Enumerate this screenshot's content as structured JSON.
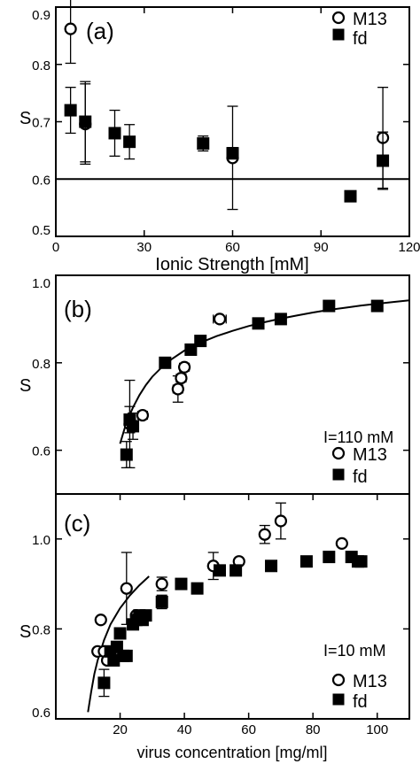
{
  "chart_data": [
    {
      "panel": "(a)",
      "type": "scatter",
      "xlabel": "Ionic Strength [mM]",
      "ylabel": "S",
      "xlim": [
        0,
        120
      ],
      "ylim": [
        0.5,
        0.9
      ],
      "xticks": [
        0,
        30,
        60,
        90,
        120
      ],
      "yticks": [
        0.5,
        0.6,
        0.7,
        0.8,
        0.9
      ],
      "xtick_labels": [
        "0",
        "30",
        "60",
        "90",
        "120"
      ],
      "ytick_labels": [
        "0.5",
        "0.6",
        "0.7",
        "0.8",
        "0.9"
      ],
      "legend_position": "top-right",
      "hline": 0.6,
      "series": [
        {
          "name": "M13",
          "marker": "open-circle",
          "points": [
            {
              "x": 5,
              "y": 0.862,
              "err": 0.06
            },
            {
              "x": 10,
              "y": 0.696,
              "err": 0.07
            },
            {
              "x": 60,
              "y": 0.637,
              "err": 0.09
            },
            {
              "x": 111,
              "y": 0.672,
              "err": 0.088
            }
          ]
        },
        {
          "name": "fd",
          "marker": "filled-square",
          "points": [
            {
              "x": 5,
              "y": 0.72,
              "err": 0.04
            },
            {
              "x": 10,
              "y": 0.7,
              "err": 0.07
            },
            {
              "x": 20,
              "y": 0.68,
              "err": 0.04
            },
            {
              "x": 25,
              "y": 0.665,
              "err": 0.03
            },
            {
              "x": 50,
              "y": 0.662,
              "err": 0.013
            },
            {
              "x": 60,
              "y": 0.645,
              "err": 0.01
            },
            {
              "x": 100,
              "y": 0.57,
              "err": 0.007
            },
            {
              "x": 111,
              "y": 0.632,
              "err": 0.05
            }
          ]
        }
      ]
    },
    {
      "panel": "(b)",
      "type": "scatter",
      "xlabel": "",
      "ylabel": "S",
      "xlim": [
        0,
        110
      ],
      "ylim": [
        0.5,
        1.0
      ],
      "yticks": [
        0.6,
        0.8,
        1.0
      ],
      "ytick_labels": [
        "0.6",
        "0.8",
        "1.0"
      ],
      "annotation": "I=110 mM",
      "legend_position": "bottom-right",
      "fit_line": [
        [
          20,
          0.615
        ],
        [
          21,
          0.64
        ],
        [
          22,
          0.664
        ],
        [
          24,
          0.698
        ],
        [
          26,
          0.726
        ],
        [
          28,
          0.749
        ],
        [
          30,
          0.768
        ],
        [
          33,
          0.79
        ],
        [
          36,
          0.808
        ],
        [
          40,
          0.828
        ],
        [
          45,
          0.846
        ],
        [
          50,
          0.861
        ],
        [
          55,
          0.873
        ],
        [
          60,
          0.884
        ],
        [
          65,
          0.893
        ],
        [
          70,
          0.901
        ],
        [
          75,
          0.908
        ],
        [
          80,
          0.915
        ],
        [
          85,
          0.921
        ],
        [
          90,
          0.926
        ],
        [
          95,
          0.931
        ],
        [
          100,
          0.935
        ],
        [
          105,
          0.939
        ],
        [
          110,
          0.943
        ]
      ],
      "series": [
        {
          "name": "M13",
          "marker": "open-circle",
          "points": [
            {
              "x": 23,
              "y": 0.66,
              "err": 0.1
            },
            {
              "x": 27,
              "y": 0.68,
              "xerr": 1.5
            },
            {
              "x": 38,
              "y": 0.74,
              "err": 0.03,
              "xerr": 1.5
            },
            {
              "x": 39,
              "y": 0.765,
              "xerr": 1.5
            },
            {
              "x": 40,
              "y": 0.79,
              "xerr": 1.5
            },
            {
              "x": 51,
              "y": 0.9,
              "xerr": 2
            }
          ]
        },
        {
          "name": "fd",
          "marker": "filled-square",
          "points": [
            {
              "x": 22,
              "y": 0.59,
              "err": 0.03
            },
            {
              "x": 23,
              "y": 0.67,
              "err": 0.03
            },
            {
              "x": 24,
              "y": 0.655,
              "err": 0.03
            },
            {
              "x": 34,
              "y": 0.8
            },
            {
              "x": 42,
              "y": 0.83
            },
            {
              "x": 45,
              "y": 0.85
            },
            {
              "x": 63,
              "y": 0.89
            },
            {
              "x": 70,
              "y": 0.9
            },
            {
              "x": 85,
              "y": 0.93
            },
            {
              "x": 100,
              "y": 0.93
            }
          ]
        }
      ]
    },
    {
      "panel": "(c)",
      "type": "scatter",
      "xlabel": "virus concentration [mg/ml]",
      "ylabel": "S",
      "xlim": [
        0,
        110
      ],
      "ylim": [
        0.6,
        1.1
      ],
      "xticks": [
        20,
        40,
        60,
        80,
        100
      ],
      "yticks": [
        0.6,
        0.8,
        1.0
      ],
      "xtick_labels": [
        "20",
        "40",
        "60",
        "80",
        "100"
      ],
      "ytick_labels": [
        "0.6",
        "0.8",
        "1.0"
      ],
      "annotation": "I=10 mM",
      "legend_position": "bottom-right",
      "fit_line": [
        [
          10,
          0.615
        ],
        [
          11,
          0.66
        ],
        [
          12,
          0.7
        ],
        [
          13,
          0.73
        ],
        [
          15,
          0.775
        ],
        [
          17,
          0.81
        ],
        [
          20,
          0.846
        ],
        [
          23,
          0.874
        ],
        [
          26,
          0.897
        ],
        [
          29,
          0.917
        ]
      ],
      "series": [
        {
          "name": "M13",
          "marker": "open-circle",
          "points": [
            {
              "x": 13,
              "y": 0.75
            },
            {
              "x": 14,
              "y": 0.82
            },
            {
              "x": 15,
              "y": 0.75
            },
            {
              "x": 16,
              "y": 0.73
            },
            {
              "x": 18,
              "y": 0.75
            },
            {
              "x": 22,
              "y": 0.89,
              "err": 0.08
            },
            {
              "x": 25,
              "y": 0.83
            },
            {
              "x": 33,
              "y": 0.9,
              "err": 0.015
            },
            {
              "x": 49,
              "y": 0.94,
              "err": 0.03
            },
            {
              "x": 57,
              "y": 0.95
            },
            {
              "x": 65,
              "y": 1.01,
              "err": 0.02
            },
            {
              "x": 70,
              "y": 1.04,
              "err": 0.04
            },
            {
              "x": 89,
              "y": 0.99
            }
          ]
        },
        {
          "name": "fd",
          "marker": "filled-square",
          "points": [
            {
              "x": 15,
              "y": 0.68,
              "err": 0.03
            },
            {
              "x": 17,
              "y": 0.75
            },
            {
              "x": 18,
              "y": 0.73
            },
            {
              "x": 19,
              "y": 0.76
            },
            {
              "x": 20,
              "y": 0.79
            },
            {
              "x": 21,
              "y": 0.74
            },
            {
              "x": 22,
              "y": 0.74
            },
            {
              "x": 24,
              "y": 0.81
            },
            {
              "x": 25,
              "y": 0.82
            },
            {
              "x": 26,
              "y": 0.83
            },
            {
              "x": 27,
              "y": 0.82
            },
            {
              "x": 28,
              "y": 0.83
            },
            {
              "x": 33,
              "y": 0.86,
              "err": 0.015
            },
            {
              "x": 39,
              "y": 0.9
            },
            {
              "x": 44,
              "y": 0.89
            },
            {
              "x": 51,
              "y": 0.93
            },
            {
              "x": 56,
              "y": 0.93
            },
            {
              "x": 67,
              "y": 0.94
            },
            {
              "x": 78,
              "y": 0.95
            },
            {
              "x": 85,
              "y": 0.96
            },
            {
              "x": 92,
              "y": 0.96
            },
            {
              "x": 94,
              "y": 0.95
            },
            {
              "x": 95,
              "y": 0.95
            }
          ]
        }
      ]
    }
  ],
  "panels": [
    {
      "label": "(a)",
      "legend": {
        "m13": "M13",
        "fd": "fd"
      }
    },
    {
      "label": "(b)",
      "annotation": "I=110 mM",
      "legend": {
        "m13": "M13",
        "fd": "fd"
      }
    },
    {
      "label": "(c)",
      "annotation": "I=10 mM",
      "legend": {
        "m13": "M13",
        "fd": "fd"
      }
    }
  ]
}
